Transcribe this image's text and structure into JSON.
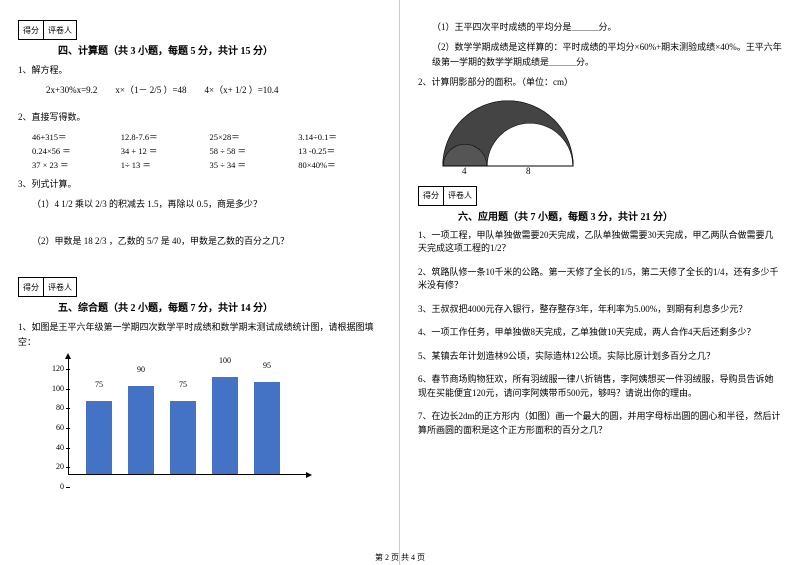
{
  "scorebox": {
    "score": "得分",
    "grader": "评卷人"
  },
  "section4": {
    "title": "四、计算题（共 3 小题，每题 5 分，共计 15 分）",
    "q1": {
      "label": "1、解方程。",
      "eq": "2x+30%x=9.2　　x×（1－ 2/5 ）=48　　4×（x+ 1/2 ）=10.4"
    },
    "q2": {
      "label": "2、直接写得数。",
      "cells": [
        "46+315＝",
        "12.8-7.6＝",
        "25×28＝",
        "3.14÷0.1＝",
        "0.24×56 ＝",
        "34 + 12 ＝",
        "58 ÷ 58 ＝",
        "13 -0.25＝",
        "37 × 23 ＝",
        "1÷ 13 ＝",
        "35 ÷ 34 ＝",
        "80×40%＝"
      ]
    },
    "q3": {
      "label": "3、列式计算。",
      "s1": "（1）4 1/2 乘以 2/3 的积减去 1.5，再除以 0.5，商是多少？",
      "s2": "（2）甲数是 18 2/3 ，乙数的 5/7 是 40，甲数是乙数的百分之几？"
    }
  },
  "section5": {
    "title": "五、综合题（共 2 小题，每题 7 分，共计 14 分）",
    "q1": "1、如图是王平六年级第一学期四次数学平时成绩和数学期末测试成绩统计图，请根据图填空："
  },
  "chart": {
    "ylim": [
      0,
      120
    ],
    "ytick_step": 20,
    "values": [
      75,
      90,
      75,
      100,
      95
    ],
    "bar_color": "#4472c4",
    "bg": "#ffffff"
  },
  "right": {
    "r1": "（1）王平四次平时成绩的平均分是＿＿＿分。",
    "r2": "（2）数学学期成绩是这样算的：平时成绩的平均分×60%+期末测验成绩×40%。王平六年级第一学期的数学学期成绩是＿＿＿分。",
    "r3": "2、计算阴影部分的面积。（单位：cm）",
    "fig": {
      "label4": "4",
      "label8": "8"
    }
  },
  "section6": {
    "title": "六、应用题（共 7 小题，每题 3 分，共计 21 分）",
    "q1": "1、一项工程，甲队单独做需要20天完成，乙队单独做需要30天完成，甲乙两队合做需要几天完成这项工程的1/2？",
    "q2": "2、筑路队修一条10千米的公路。第一天修了全长的1/5，第二天修了全长的1/4，还有多少千米没有修？",
    "q3": "3、王叔叔把4000元存入银行，整存整存3年，年利率为5.00%，到期有利息多少元？",
    "q4": "4、一项工作任务，甲单独做8天完成，乙单独做10天完成，两人合作4天后还剩多少？",
    "q5": "5、某镇去年计划造林9公顷，实际造林12公顷。实际比原计划多百分之几？",
    "q6": "6、春节商场购物狂欢，所有羽绒服一律八折销售，李阿姨想买一件羽绒服，导购员告诉她现在买能便宜120元，请问李阿姨带币500元，够吗？请说出你的理由。",
    "q7": "7、在边长2dm的正方形内（如图）画一个最大的圆，并用字母标出圆的圆心和半径，然后计算所画圆的面积是这个正方形面积的百分之几？"
  },
  "footer": "第 2 页 共 4 页"
}
